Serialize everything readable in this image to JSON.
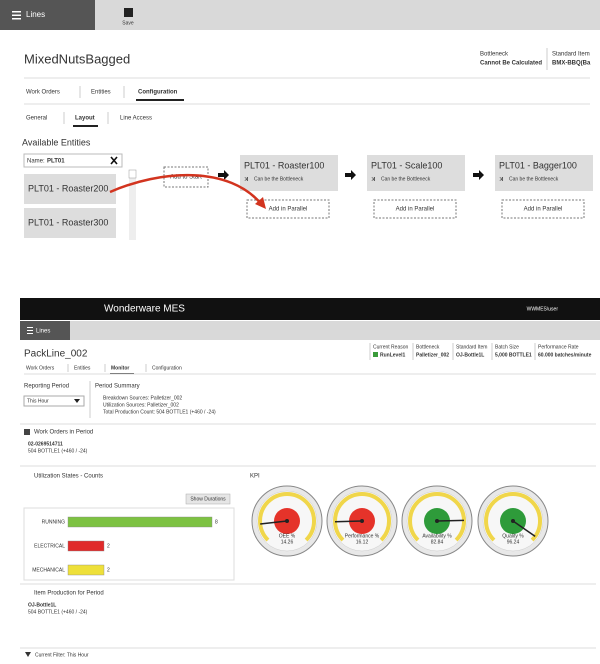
{
  "top_screen": {
    "nav_button": "Lines",
    "save_label": "Save",
    "title": "MixedNutsBagged",
    "info": [
      {
        "label": "Bottleneck",
        "value": "Cannot Be Calculated"
      },
      {
        "label": "Standard Item",
        "value": "BMX-BBQ(Ba"
      }
    ],
    "tabs": [
      "Work Orders",
      "Entities",
      "Configuration"
    ],
    "subtabs": [
      "General",
      "Layout",
      "Line Access"
    ],
    "available_entities": {
      "heading": "Available Entities",
      "search_label": "Name:",
      "search_value": "PLT01",
      "items": [
        "PLT01 - Roaster200",
        "PLT01 - Roaster300"
      ]
    },
    "add_to_start": "Add to Start",
    "flow": [
      {
        "name": "PLT01 - Roaster100",
        "note": "Can be the Bottleneck",
        "add": "Add in Parallel"
      },
      {
        "name": "PLT01 - Scale100",
        "note": "Can be the Bottleneck",
        "add": "Add in Parallel"
      },
      {
        "name": "PLT01 - Bagger100",
        "note": "Can be the Bottleneck",
        "add": "Add in Parallel"
      }
    ]
  },
  "bottom_screen": {
    "app_title": "Wonderware MES",
    "user": "WWMES\\user",
    "nav_button": "Lines",
    "title": "PackLine_002",
    "info": [
      {
        "label": "Current Reason",
        "value": "RunLevel1"
      },
      {
        "label": "Bottleneck",
        "value": "Palletizer_002"
      },
      {
        "label": "Standard Item",
        "value": "OJ-Bottle1L"
      },
      {
        "label": "Batch Size",
        "value": "5,000 BOTTLE1"
      },
      {
        "label": "Performance Rate",
        "value": "60.000 batches/minute"
      }
    ],
    "tabs": [
      "Work Orders",
      "Entities",
      "Monitor",
      "Configuration"
    ],
    "reporting_period": {
      "heading": "Reporting Period",
      "value": "This Hour"
    },
    "period_summary": {
      "heading": "Period Summary",
      "lines": [
        "Breakdown Sources: Palletizer_002",
        "Utilization Sources: Palletizer_002",
        "Total Production Count: 504 BOTTLE1 (+460 / -24)"
      ]
    },
    "work_orders": {
      "heading": "Work Orders in Period",
      "id": "02-0269514711",
      "count": "504 BOTTLE1 (+460 / -24)"
    },
    "utilization_chart": {
      "type": "bar",
      "title": "Utilization States - Counts",
      "button": "Show Durations",
      "categories": [
        "RUNNING",
        "ELECTRICAL",
        "MECHANICAL"
      ],
      "values": [
        8,
        2,
        2
      ],
      "colors": [
        "#7dc242",
        "#e02a2a",
        "#eee03a"
      ],
      "xlim": [
        0,
        8
      ]
    },
    "kpi": {
      "title": "KPI",
      "range": [
        0,
        100
      ],
      "gauges": [
        {
          "name": "OEE %",
          "value": 14.26,
          "color": "#e5332a"
        },
        {
          "name": "Performance %",
          "value": 16.12,
          "color": "#e5332a"
        },
        {
          "name": "Availability %",
          "value": 82.84,
          "color": "#2e9b3a"
        },
        {
          "name": "Quality %",
          "value": 96.24,
          "color": "#2e9b3a"
        }
      ]
    },
    "item_production": {
      "heading": "Item Production for Period",
      "item": "OJ-Bottle1L",
      "count": "504 BOTTLE1 (+460 / -24)"
    },
    "filter": "Current Filter: This Hour"
  }
}
